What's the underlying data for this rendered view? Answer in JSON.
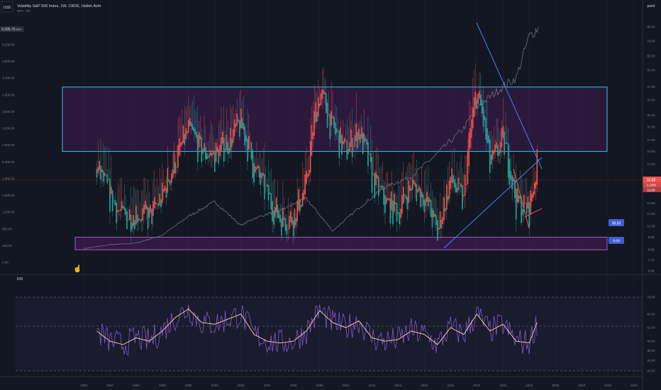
{
  "header": {
    "currency": "USD",
    "title": "Volatility S&P 500 Index, 1W, CBOE, Heikin Ashi",
    "price_tag": "5,095.75",
    "price_tag_suffix": "SPX",
    "overlay_symbol": "SPX · SP",
    "scale_mode": "point"
  },
  "rsi_pane": {
    "label": "RSI"
  },
  "badges": {
    "upper": "98.89",
    "lower": "9.69"
  },
  "price_labels": {
    "last": "16.88",
    "change": "-1.23%",
    "lower": "11.90"
  },
  "colors": {
    "up": "#26a69a",
    "down": "#ef5350",
    "box_top": "#2ec4e6",
    "box_bottom": "#b24fd6",
    "rsi": "#7e57c2",
    "rsi_ma": "#f5d9a8",
    "trend": "#4d7df0",
    "badge": "#3d5fd1"
  },
  "chart_data": {
    "type": "candlestick",
    "left_axis_ticks": [
      "0.00",
      "400.00",
      "800.00",
      "1,200.00",
      "1,600.00",
      "2,000.00",
      "2,400.00",
      "2,800.00",
      "3,200.00",
      "3,600.00",
      "4,000.00",
      "4,400.00",
      "4,800.00",
      "5,200.00"
    ],
    "right_axis_ticks": [
      "88.00",
      "76.00",
      "65.00",
      "56.00",
      "47.00",
      "41.00",
      "35.00",
      "31.00",
      "27.00",
      "24.00",
      "21.00",
      "18.00",
      "16.00",
      "14.00",
      "12.50",
      "11.00",
      "9.80",
      "8.60",
      "7.70",
      "6.90"
    ],
    "rsi_axis_ticks": [
      "70.00",
      "60.00",
      "52.00",
      "44.00",
      "38.50",
      "32.50",
      "26.50"
    ],
    "x_ticks": [
      "1990",
      "1992",
      "1994",
      "1996",
      "1998",
      "2000",
      "2002",
      "2004",
      "2006",
      "2008",
      "2010",
      "2012",
      "2014",
      "2016",
      "2018",
      "2020",
      "2022",
      "2024",
      "2026",
      "2028",
      "2030",
      "2032"
    ],
    "boxes": {
      "upper": [
        24.0,
        47.0
      ],
      "lower": [
        8.6,
        9.8
      ]
    },
    "vix_series": [
      [
        1991,
        20
      ],
      [
        1992,
        15
      ],
      [
        1993,
        12
      ],
      [
        1994,
        13
      ],
      [
        1995,
        12
      ],
      [
        1996,
        15
      ],
      [
        1997,
        22
      ],
      [
        1998,
        30
      ],
      [
        1999,
        24
      ],
      [
        2000,
        23
      ],
      [
        2001,
        27
      ],
      [
        2002,
        32
      ],
      [
        2003,
        20
      ],
      [
        2004,
        15
      ],
      [
        2005,
        12
      ],
      [
        2006,
        12
      ],
      [
        2007,
        17
      ],
      [
        2008,
        45
      ],
      [
        2009,
        30
      ],
      [
        2010,
        24
      ],
      [
        2011,
        30
      ],
      [
        2012,
        18
      ],
      [
        2013,
        14
      ],
      [
        2014,
        13
      ],
      [
        2015,
        17
      ],
      [
        2016,
        15
      ],
      [
        2017,
        10
      ],
      [
        2018,
        18
      ],
      [
        2019,
        14
      ],
      [
        2020,
        45
      ],
      [
        2021,
        20
      ],
      [
        2022,
        27
      ],
      [
        2023,
        14
      ],
      [
        2024,
        13
      ],
      [
        2024.6,
        21
      ]
    ],
    "spx_series": [
      [
        1990,
        330
      ],
      [
        1992,
        420
      ],
      [
        1994,
        460
      ],
      [
        1996,
        650
      ],
      [
        1998,
        1100
      ],
      [
        2000,
        1450
      ],
      [
        2002,
        880
      ],
      [
        2003,
        1050
      ],
      [
        2005,
        1250
      ],
      [
        2007,
        1520
      ],
      [
        2009,
        750
      ],
      [
        2011,
        1300
      ],
      [
        2013,
        1800
      ],
      [
        2015,
        2050
      ],
      [
        2017,
        2600
      ],
      [
        2019,
        3200
      ],
      [
        2020,
        3700
      ],
      [
        2022,
        4200
      ],
      [
        2023,
        4400
      ],
      [
        2024,
        5400
      ],
      [
        2024.7,
        5600
      ]
    ],
    "rsi_series": [
      [
        1991,
        50
      ],
      [
        1992,
        44
      ],
      [
        1993,
        42
      ],
      [
        1994,
        46
      ],
      [
        1995,
        44
      ],
      [
        1996,
        50
      ],
      [
        1997,
        58
      ],
      [
        1998,
        63
      ],
      [
        1999,
        55
      ],
      [
        2000,
        54
      ],
      [
        2001,
        57
      ],
      [
        2002,
        60
      ],
      [
        2003,
        48
      ],
      [
        2004,
        44
      ],
      [
        2005,
        43
      ],
      [
        2006,
        44
      ],
      [
        2007,
        50
      ],
      [
        2008,
        62
      ],
      [
        2009,
        55
      ],
      [
        2010,
        52
      ],
      [
        2011,
        56
      ],
      [
        2012,
        46
      ],
      [
        2013,
        44
      ],
      [
        2014,
        45
      ],
      [
        2015,
        50
      ],
      [
        2016,
        48
      ],
      [
        2017,
        42
      ],
      [
        2018,
        52
      ],
      [
        2019,
        48
      ],
      [
        2020,
        60
      ],
      [
        2021,
        50
      ],
      [
        2022,
        54
      ],
      [
        2023,
        44
      ],
      [
        2024,
        43
      ],
      [
        2024.6,
        55
      ]
    ]
  }
}
